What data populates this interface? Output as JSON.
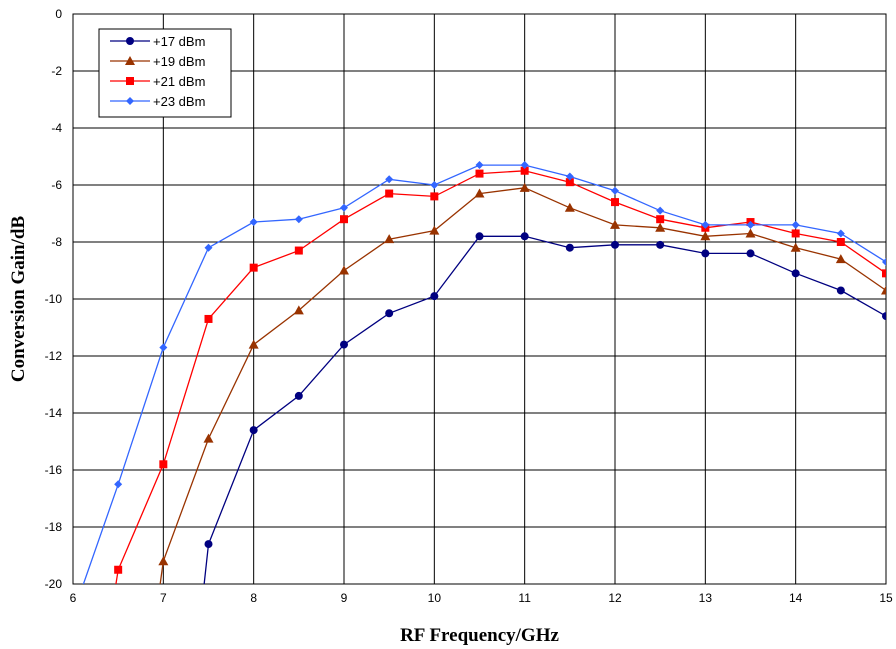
{
  "chart_data": {
    "type": "line",
    "title": "",
    "xlabel": "RF Frequency/GHz",
    "ylabel": "Conversion Gain/dB",
    "xlim": [
      6,
      15
    ],
    "ylim": [
      -20,
      0
    ],
    "x_ticks": [
      "6",
      "7",
      "8",
      "9",
      "10",
      "11",
      "12",
      "13",
      "14",
      "15"
    ],
    "y_ticks": [
      "0",
      "-2",
      "-4",
      "-6",
      "-8",
      "-10",
      "-12",
      "-14",
      "-16",
      "-18",
      "-20"
    ],
    "grid": true,
    "legend_position": "top-left",
    "series": [
      {
        "name": "+17 dBm",
        "color": "#000080",
        "marker": "circle",
        "points": [
          [
            7.4,
            -21.5
          ],
          [
            7.5,
            -18.6
          ],
          [
            8.0,
            -14.6
          ],
          [
            8.5,
            -13.4
          ],
          [
            9.0,
            -11.6
          ],
          [
            9.5,
            -10.5
          ],
          [
            10.0,
            -9.9
          ],
          [
            10.5,
            -7.8
          ],
          [
            11.0,
            -7.8
          ],
          [
            11.5,
            -8.2
          ],
          [
            12.0,
            -8.1
          ],
          [
            12.5,
            -8.1
          ],
          [
            13.0,
            -8.4
          ],
          [
            13.5,
            -8.4
          ],
          [
            14.0,
            -9.1
          ],
          [
            14.5,
            -9.7
          ],
          [
            15.0,
            -10.6
          ]
        ]
      },
      {
        "name": "+19 dBm",
        "color": "#993300",
        "marker": "triangle",
        "points": [
          [
            6.9,
            -21.5
          ],
          [
            7.0,
            -19.2
          ],
          [
            7.5,
            -14.9
          ],
          [
            8.0,
            -11.6
          ],
          [
            8.5,
            -10.4
          ],
          [
            9.0,
            -9.0
          ],
          [
            9.5,
            -7.9
          ],
          [
            10.0,
            -7.6
          ],
          [
            10.5,
            -6.3
          ],
          [
            11.0,
            -6.1
          ],
          [
            11.5,
            -6.8
          ],
          [
            12.0,
            -7.4
          ],
          [
            12.5,
            -7.5
          ],
          [
            13.0,
            -7.8
          ],
          [
            13.5,
            -7.7
          ],
          [
            14.0,
            -8.2
          ],
          [
            14.5,
            -8.6
          ],
          [
            15.0,
            -9.7
          ]
        ]
      },
      {
        "name": "+21 dBm",
        "color": "#FF0000",
        "marker": "square",
        "points": [
          [
            6.4,
            -21.5
          ],
          [
            6.5,
            -19.5
          ],
          [
            7.0,
            -15.8
          ],
          [
            7.5,
            -10.7
          ],
          [
            8.0,
            -8.9
          ],
          [
            8.5,
            -8.3
          ],
          [
            9.0,
            -7.2
          ],
          [
            9.5,
            -6.3
          ],
          [
            10.0,
            -6.4
          ],
          [
            10.5,
            -5.6
          ],
          [
            11.0,
            -5.5
          ],
          [
            11.5,
            -5.9
          ],
          [
            12.0,
            -6.6
          ],
          [
            12.5,
            -7.2
          ],
          [
            13.0,
            -7.5
          ],
          [
            13.5,
            -7.3
          ],
          [
            14.0,
            -7.7
          ],
          [
            14.5,
            -8.0
          ],
          [
            15.0,
            -9.1
          ]
        ]
      },
      {
        "name": "+23 dBm",
        "color": "#3366FF",
        "marker": "diamond",
        "points": [
          [
            5.95,
            -21.5
          ],
          [
            6.5,
            -16.5
          ],
          [
            7.0,
            -11.7
          ],
          [
            7.5,
            -8.2
          ],
          [
            8.0,
            -7.3
          ],
          [
            8.5,
            -7.2
          ],
          [
            9.0,
            -6.8
          ],
          [
            9.5,
            -5.8
          ],
          [
            10.0,
            -6.0
          ],
          [
            10.5,
            -5.3
          ],
          [
            11.0,
            -5.3
          ],
          [
            11.5,
            -5.7
          ],
          [
            12.0,
            -6.2
          ],
          [
            12.5,
            -6.9
          ],
          [
            13.0,
            -7.4
          ],
          [
            13.5,
            -7.4
          ],
          [
            14.0,
            -7.4
          ],
          [
            14.5,
            -7.7
          ],
          [
            15.0,
            -8.7
          ]
        ]
      }
    ]
  }
}
